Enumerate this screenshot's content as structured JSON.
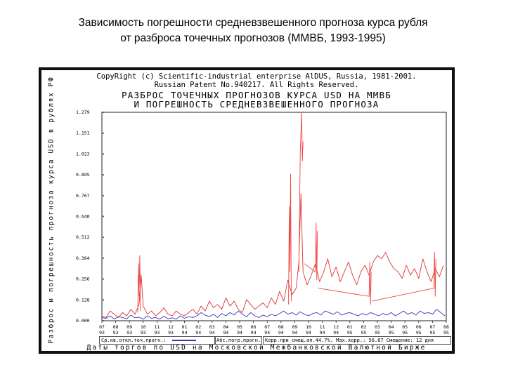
{
  "slide": {
    "title_line1": "Зависимость погрешности средневзвешенного прогноза курса рубля",
    "title_line2": "от разброса точечных прогнозов (ММВБ, 1993-1995)"
  },
  "chart_data": {
    "type": "line",
    "copyright_line1": "CopyRight (c) Scientific-industrial enterprise AlDUS, Russia, 1981-2001.",
    "copyright_line2": "Russian Patent No.940217. All Rights Reserved.",
    "title_line1": "РАЗБРОС ТОЧЕЧНЫХ ПРОГНОЗОВ КУРСА USD НА ММВБ",
    "title_line2": "И ПОГРЕШНОСТЬ СРЕДНЕВЗВЕШЕННОГО ПРОГНОЗА",
    "ylabel": "Разброс и погрешность прогноза курса USD в рублях РФ",
    "xlabel": "Даты торгов по USD на Московской Межбанковской Валютной Бирже",
    "ylim": [
      0,
      1.279
    ],
    "yticks": [
      "1.279",
      "1.151",
      "1.023",
      "0.895",
      "0.767",
      "0.640",
      "0.512",
      "0.384",
      "0.256",
      "0.128",
      "0.000"
    ],
    "ytick_values": [
      1.279,
      1.151,
      1.023,
      0.895,
      0.767,
      0.64,
      0.512,
      0.384,
      0.256,
      0.128,
      0.0
    ],
    "xticks": [
      {
        "m": "07",
        "y": "93"
      },
      {
        "m": "08",
        "y": "93"
      },
      {
        "m": "09",
        "y": "93"
      },
      {
        "m": "10",
        "y": "93"
      },
      {
        "m": "11",
        "y": "93"
      },
      {
        "m": "12",
        "y": "93"
      },
      {
        "m": "01",
        "y": "94"
      },
      {
        "m": "02",
        "y": "94"
      },
      {
        "m": "03",
        "y": "94"
      },
      {
        "m": "04",
        "y": "94"
      },
      {
        "m": "05",
        "y": "94"
      },
      {
        "m": "06",
        "y": "94"
      },
      {
        "m": "07",
        "y": "94"
      },
      {
        "m": "08",
        "y": "94"
      },
      {
        "m": "09",
        "y": "94"
      },
      {
        "m": "10",
        "y": "94"
      },
      {
        "m": "11",
        "y": "94"
      },
      {
        "m": "12",
        "y": "94"
      },
      {
        "m": "01",
        "y": "95"
      },
      {
        "m": "02",
        "y": "95"
      },
      {
        "m": "03",
        "y": "95"
      },
      {
        "m": "04",
        "y": "95"
      },
      {
        "m": "05",
        "y": "95"
      },
      {
        "m": "06",
        "y": "95"
      },
      {
        "m": "07",
        "y": "95"
      },
      {
        "m": "08",
        "y": "95"
      }
    ],
    "x_range": [
      0,
      25
    ],
    "grid": false,
    "series": [
      {
        "color": "#3333bb",
        "x": [
          0,
          0.3,
          0.6,
          0.9,
          1.2,
          1.5,
          1.8,
          2.1,
          2.4,
          2.7,
          3.0,
          3.3,
          3.6,
          3.9,
          4.2,
          4.5,
          4.8,
          5.1,
          5.4,
          5.7,
          6.0,
          6.3,
          6.6,
          6.9,
          7.2,
          7.5,
          7.8,
          8.1,
          8.4,
          8.7,
          9.0,
          9.3,
          9.6,
          9.9,
          10.2,
          10.5,
          10.8,
          11.1,
          11.4,
          11.7,
          12.0,
          12.3,
          12.6,
          12.9,
          13.2,
          13.5,
          13.8,
          14.1,
          14.4,
          14.7,
          15.0,
          15.3,
          15.6,
          15.9,
          16.2,
          16.5,
          16.8,
          17.1,
          17.4,
          17.7,
          18.0,
          18.3,
          18.6,
          18.9,
          19.2,
          19.5,
          19.8,
          20.1,
          20.4,
          20.7,
          21.0,
          21.3,
          21.6,
          21.9,
          22.2,
          22.5,
          22.8,
          23.1,
          23.4,
          23.7,
          24.0,
          24.3,
          24.6,
          24.9
        ],
        "values": [
          0.02,
          0.015,
          0.03,
          0.01,
          0.025,
          0.02,
          0.012,
          0.035,
          0.018,
          0.022,
          0.01,
          0.03,
          0.015,
          0.02,
          0.01,
          0.028,
          0.012,
          0.018,
          0.01,
          0.03,
          0.015,
          0.025,
          0.02,
          0.03,
          0.05,
          0.035,
          0.025,
          0.04,
          0.02,
          0.045,
          0.03,
          0.05,
          0.035,
          0.06,
          0.04,
          0.025,
          0.05,
          0.03,
          0.02,
          0.035,
          0.025,
          0.04,
          0.03,
          0.045,
          0.06,
          0.04,
          0.05,
          0.035,
          0.055,
          0.04,
          0.03,
          0.045,
          0.05,
          0.035,
          0.06,
          0.05,
          0.04,
          0.055,
          0.035,
          0.045,
          0.05,
          0.04,
          0.03,
          0.045,
          0.035,
          0.05,
          0.04,
          0.03,
          0.045,
          0.035,
          0.05,
          0.03,
          0.045,
          0.06,
          0.04,
          0.05,
          0.035,
          0.06,
          0.045,
          0.05,
          0.04,
          0.07,
          0.05,
          0.03
        ]
      },
      {
        "color": "#dd3333",
        "x": [
          0,
          0.3,
          0.6,
          0.9,
          1.2,
          1.5,
          1.8,
          2.1,
          2.4,
          2.7,
          2.85,
          3.0,
          3.3,
          3.6,
          3.9,
          4.2,
          4.5,
          4.8,
          5.1,
          5.4,
          5.7,
          6.0,
          6.3,
          6.6,
          6.9,
          7.2,
          7.5,
          7.8,
          8.1,
          8.4,
          8.7,
          9.0,
          9.3,
          9.6,
          9.9,
          10.2,
          10.5,
          10.8,
          11.1,
          11.4,
          11.7,
          12.0,
          12.3,
          12.6,
          12.9,
          13.2,
          13.5,
          13.8,
          14.1,
          14.3,
          14.45,
          14.6,
          14.9,
          15.2,
          15.5,
          15.8,
          16.1,
          16.4,
          16.7,
          17.0,
          17.3,
          17.6,
          17.9,
          18.2,
          18.5,
          18.8,
          19.1,
          19.4,
          19.7,
          20.0,
          20.3,
          20.6,
          20.9,
          21.2,
          21.5,
          21.8,
          22.1,
          22.4,
          22.7,
          23.0,
          23.3,
          23.6,
          23.9,
          24.2,
          24.5,
          24.8
        ],
        "values": [
          0.03,
          0.02,
          0.06,
          0.04,
          0.02,
          0.05,
          0.03,
          0.07,
          0.04,
          0.1,
          0.28,
          0.09,
          0.04,
          0.06,
          0.03,
          0.05,
          0.08,
          0.04,
          0.03,
          0.06,
          0.04,
          0.03,
          0.05,
          0.07,
          0.04,
          0.09,
          0.06,
          0.12,
          0.08,
          0.1,
          0.07,
          0.14,
          0.09,
          0.12,
          0.07,
          0.05,
          0.13,
          0.1,
          0.07,
          0.09,
          0.11,
          0.08,
          0.14,
          0.1,
          0.18,
          0.12,
          0.25,
          0.16,
          0.2,
          0.36,
          0.78,
          0.3,
          0.22,
          0.28,
          0.35,
          0.24,
          0.3,
          0.38,
          0.27,
          0.33,
          0.24,
          0.3,
          0.36,
          0.28,
          0.22,
          0.3,
          0.34,
          0.28,
          0.36,
          0.4,
          0.38,
          0.42,
          0.36,
          0.32,
          0.3,
          0.26,
          0.34,
          0.28,
          0.32,
          0.26,
          0.38,
          0.3,
          0.24,
          0.32,
          0.27,
          0.34
        ]
      },
      {
        "color": "#ee4444",
        "x": [
          2.6,
          2.65,
          2.7,
          2.75,
          2.8,
          13.55,
          13.6,
          13.65,
          13.7,
          13.75,
          14.3,
          14.4,
          14.5,
          14.55,
          14.6,
          14.7,
          15.5,
          15.55,
          15.6,
          15.65,
          15.7,
          19.4,
          19.45,
          19.5,
          19.55,
          19.6,
          24.1,
          24.15,
          24.2,
          24.25,
          24.3
        ],
        "values": [
          0.05,
          0.35,
          0.15,
          0.4,
          0.06,
          0.1,
          0.7,
          0.3,
          0.9,
          0.12,
          0.3,
          1.02,
          1.279,
          0.98,
          1.1,
          0.35,
          0.3,
          0.6,
          0.25,
          0.55,
          0.2,
          0.15,
          0.36,
          0.1,
          0.3,
          0.12,
          0.2,
          0.42,
          0.15,
          0.38,
          0.1
        ]
      }
    ],
    "legend": [
      {
        "text": "Ср.кв.откл.точ.прогн.:",
        "color": "#3333bb"
      },
      {
        "text": "Абс.погр.прогн.:",
        "color": "#dd3333"
      },
      {
        "text": "Корр.при смещ.ап.44.7%. Мах.корр.: 56.87 Смещение: 12 дня",
        "color": ""
      }
    ]
  }
}
